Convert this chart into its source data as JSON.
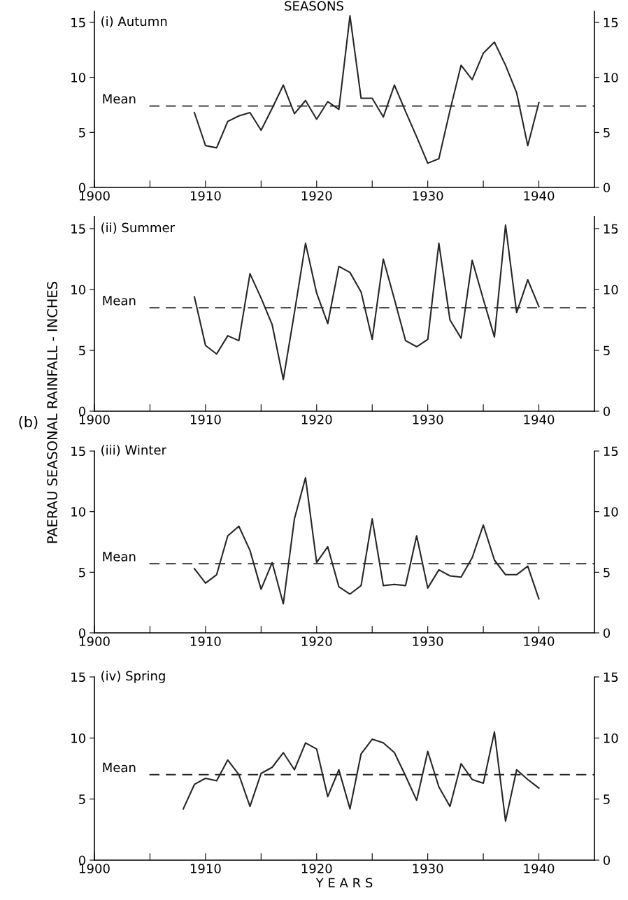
{
  "chart_data": [
    {
      "type": "line",
      "title": "SEASONS",
      "subtitle": "(i) Autumn",
      "x": [
        1909,
        1910,
        1911,
        1912,
        1913,
        1914,
        1915,
        1916,
        1917,
        1918,
        1919,
        1920,
        1921,
        1922,
        1923,
        1924,
        1925,
        1926,
        1927,
        1928,
        1929,
        1930,
        1931,
        1932,
        1933,
        1934,
        1935,
        1936,
        1937,
        1938,
        1939,
        1940
      ],
      "series": [
        {
          "color": "#262626",
          "values": [
            6.8,
            3.8,
            3.6,
            6.0,
            6.5,
            6.8,
            5.2,
            7.2,
            9.3,
            6.7,
            7.9,
            6.2,
            7.8,
            7.1,
            15.6,
            8.1,
            8.1,
            6.4,
            9.3,
            6.9,
            4.6,
            2.2,
            2.6,
            7.0,
            11.1,
            9.8,
            12.2,
            13.2,
            11.1,
            8.6,
            3.8,
            7.7
          ]
        }
      ],
      "xlim": [
        1900,
        1945
      ],
      "xticks": [
        1900,
        {
          "value": 1905,
          "label": null
        },
        1910,
        {
          "value": 1915,
          "label": null
        },
        1920,
        {
          "value": 1925,
          "label": null
        },
        1930,
        {
          "value": 1935,
          "label": null
        },
        1940
      ],
      "ylim": [
        0,
        16
      ],
      "yticks": [
        0,
        5,
        10,
        15
      ],
      "y2lim": [
        0,
        16
      ],
      "y2ticks": [
        0,
        5,
        10,
        15
      ],
      "ref_lines": [
        {
          "axis": "y",
          "value": 7.4,
          "label": "Mean",
          "line_style": "dashed",
          "color": "#262626"
        }
      ],
      "grid": false,
      "legend": false,
      "marker": "none",
      "line_style": "solid"
    },
    {
      "type": "line",
      "subtitle": "(ii) Summer",
      "ylabel": "PAERAU SEASONAL RAINFALL - INCHES",
      "x": [
        1909,
        1910,
        1911,
        1912,
        1913,
        1914,
        1915,
        1916,
        1917,
        1918,
        1919,
        1920,
        1921,
        1922,
        1923,
        1924,
        1925,
        1926,
        1927,
        1928,
        1929,
        1930,
        1931,
        1932,
        1933,
        1934,
        1935,
        1936,
        1937,
        1938,
        1939,
        1940
      ],
      "series": [
        {
          "color": "#262626",
          "values": [
            9.4,
            5.4,
            4.7,
            6.2,
            5.8,
            11.3,
            9.3,
            7.1,
            2.6,
            8.1,
            13.8,
            9.7,
            7.2,
            11.9,
            11.4,
            9.8,
            5.9,
            12.5,
            9.2,
            5.8,
            5.3,
            5.9,
            13.8,
            7.5,
            6.0,
            12.4,
            9.2,
            6.1,
            15.3,
            8.1,
            10.8,
            8.6
          ]
        }
      ],
      "xlim": [
        1900,
        1945
      ],
      "xticks": [
        1900,
        {
          "value": 1905,
          "label": null
        },
        1910,
        {
          "value": 1915,
          "label": null
        },
        1920,
        {
          "value": 1925,
          "label": null
        },
        1930,
        {
          "value": 1935,
          "label": null
        },
        1940
      ],
      "ylim": [
        0,
        16
      ],
      "yticks": [
        0,
        5,
        10,
        15
      ],
      "y2lim": [
        0,
        16
      ],
      "y2ticks": [
        0,
        5,
        10,
        15
      ],
      "ref_lines": [
        {
          "axis": "y",
          "value": 8.5,
          "label": "Mean",
          "line_style": "dashed",
          "color": "#262626"
        }
      ],
      "grid": false,
      "legend": false,
      "marker": "none",
      "line_style": "solid"
    },
    {
      "type": "line",
      "subtitle": "(iii) Winter",
      "annotations": [
        "(b)"
      ],
      "x": [
        1909,
        1910,
        1911,
        1912,
        1913,
        1914,
        1915,
        1916,
        1917,
        1918,
        1919,
        1920,
        1921,
        1922,
        1923,
        1924,
        1925,
        1926,
        1927,
        1928,
        1929,
        1930,
        1931,
        1932,
        1933,
        1934,
        1935,
        1936,
        1937,
        1938,
        1939,
        1940
      ],
      "series": [
        {
          "color": "#262626",
          "values": [
            5.3,
            4.1,
            4.8,
            8.0,
            8.8,
            6.8,
            3.6,
            5.8,
            2.4,
            9.4,
            12.8,
            5.8,
            7.1,
            3.8,
            3.2,
            3.9,
            9.4,
            3.9,
            4.0,
            3.9,
            8.0,
            3.7,
            5.2,
            4.7,
            4.6,
            6.2,
            8.9,
            6.0,
            4.8,
            4.8,
            5.5,
            2.8
          ]
        }
      ],
      "xlim": [
        1900,
        1945
      ],
      "xticks": [
        1900,
        {
          "value": 1905,
          "label": null
        },
        1910,
        {
          "value": 1915,
          "label": null
        },
        1920,
        {
          "value": 1925,
          "label": null
        },
        1930,
        {
          "value": 1935,
          "label": null
        },
        1940
      ],
      "ylim": [
        0,
        15
      ],
      "yticks": [
        0,
        5,
        10,
        15
      ],
      "y2lim": [
        0,
        15
      ],
      "y2ticks": [
        0,
        5,
        10,
        15
      ],
      "ref_lines": [
        {
          "axis": "y",
          "value": 5.7,
          "label": "Mean",
          "line_style": "dashed",
          "color": "#262626"
        }
      ],
      "grid": false,
      "legend": false,
      "marker": "none",
      "line_style": "solid"
    },
    {
      "type": "line",
      "subtitle": "(iv) Spring",
      "xlabel": "Y E A R S",
      "x": [
        1908,
        1909,
        1910,
        1911,
        1912,
        1913,
        1914,
        1915,
        1916,
        1917,
        1918,
        1919,
        1920,
        1921,
        1922,
        1923,
        1924,
        1925,
        1926,
        1927,
        1928,
        1929,
        1930,
        1931,
        1932,
        1933,
        1934,
        1935,
        1936,
        1937,
        1938,
        1939,
        1940
      ],
      "series": [
        {
          "color": "#262626",
          "values": [
            4.2,
            6.2,
            6.7,
            6.5,
            8.2,
            7.0,
            4.4,
            7.1,
            7.6,
            8.8,
            7.4,
            9.6,
            9.1,
            5.2,
            7.4,
            4.2,
            8.7,
            9.9,
            9.6,
            8.8,
            6.9,
            4.9,
            8.9,
            6.0,
            4.4,
            7.9,
            6.6,
            6.3,
            10.5,
            3.2,
            7.4,
            6.6,
            5.9
          ]
        }
      ],
      "xlim": [
        1900,
        1945
      ],
      "xticks": [
        1900,
        {
          "value": 1905,
          "label": null
        },
        1910,
        {
          "value": 1915,
          "label": null
        },
        1920,
        {
          "value": 1925,
          "label": null
        },
        1930,
        {
          "value": 1935,
          "label": null
        },
        1940
      ],
      "ylim": [
        0,
        15
      ],
      "yticks": [
        0,
        5,
        10,
        15
      ],
      "y2lim": [
        0,
        15
      ],
      "y2ticks": [
        0,
        5,
        10,
        15
      ],
      "ref_lines": [
        {
          "axis": "y",
          "value": 7.0,
          "label": "Mean",
          "line_style": "dashed",
          "color": "#262626"
        }
      ],
      "grid": false,
      "legend": false,
      "marker": "none",
      "line_style": "solid"
    }
  ]
}
